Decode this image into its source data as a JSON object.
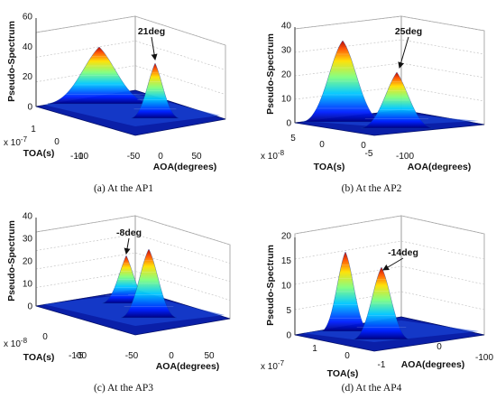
{
  "chart_data": [
    {
      "type": "surface",
      "caption": "(a)  At the AP1",
      "zlabel": "Pseudo-Spectrum",
      "ylabel": "TOA(s)",
      "xlabel": "AOA(degrees)",
      "zticks": [
        "0",
        "20",
        "40",
        "60"
      ],
      "zlim": [
        0,
        60
      ],
      "yticks": [
        "1",
        "0",
        "-1"
      ],
      "ylim": [
        -1,
        1
      ],
      "yscale": "x 10",
      "yexp": "-7",
      "xticks": [
        "-100",
        "-50",
        "0",
        "50"
      ],
      "xlim": [
        -100,
        100
      ],
      "annotation": "21deg",
      "peaks": [
        {
          "aoa": -45,
          "toa": 0.1,
          "height": 45
        },
        {
          "aoa": 21,
          "toa": -0.1,
          "height": 33
        }
      ]
    },
    {
      "type": "surface",
      "caption": "(b)  At the AP2",
      "zlabel": "Pseudo-Spectrum",
      "ylabel": "TOA(s)",
      "xlabel": "AOA(degrees)",
      "zticks": [
        "0",
        "10",
        "20",
        "30",
        "40"
      ],
      "zlim": [
        0,
        40
      ],
      "yticks": [
        "5",
        "0",
        "-5"
      ],
      "ylim": [
        -5,
        5
      ],
      "yscale": "x 10",
      "yexp": "-8",
      "xticks": [
        "0",
        "-100"
      ],
      "xlim": [
        -100,
        100
      ],
      "annotation": "25deg",
      "peaks": [
        {
          "aoa": -40,
          "toa": 0.3,
          "height": 33
        },
        {
          "aoa": 25,
          "toa": -0.3,
          "height": 22
        }
      ]
    },
    {
      "type": "surface",
      "caption": "(c)  At the AP3",
      "zlabel": "Pseudo-Spectrum",
      "ylabel": "TOA(s)",
      "xlabel": "AOA(degrees)",
      "zticks": [
        "0",
        "10",
        "20",
        "30",
        "40"
      ],
      "zlim": [
        0,
        40
      ],
      "yticks": [
        "0",
        "-5"
      ],
      "ylim": [
        -5,
        5
      ],
      "yscale": "x 10",
      "yexp": "-8",
      "xticks": [
        "-100",
        "-50",
        "0",
        "50"
      ],
      "xlim": [
        -100,
        100
      ],
      "annotation": "-8deg",
      "peaks": [
        {
          "aoa": -8,
          "toa": 0.2,
          "height": 24
        },
        {
          "aoa": 25,
          "toa": 0.3,
          "height": 28
        }
      ]
    },
    {
      "type": "surface",
      "caption": "(d)  At the AP4",
      "zlabel": "Pseudo-Spectrum",
      "ylabel": "TOA(s)",
      "xlabel": "AOA(degrees)",
      "zticks": [
        "0",
        "5",
        "10",
        "15",
        "20"
      ],
      "zlim": [
        0,
        20
      ],
      "yticks": [
        "1",
        "0",
        "-1"
      ],
      "ylim": [
        -1,
        1
      ],
      "yscale": "x 10",
      "yexp": "-7",
      "xticks": [
        "0",
        "-100"
      ],
      "xlim": [
        -100,
        100
      ],
      "annotation": "-14deg",
      "peaks": [
        {
          "aoa": -45,
          "toa": 0.1,
          "height": 16
        },
        {
          "aoa": -14,
          "toa": -0.1,
          "height": 14
        }
      ]
    }
  ]
}
